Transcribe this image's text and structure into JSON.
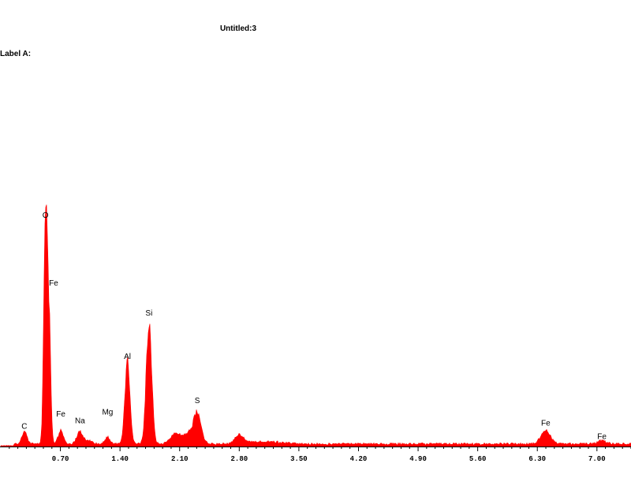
{
  "header": {
    "title": "Untitled:3",
    "label": "Label A:"
  },
  "chart_data": {
    "type": "area",
    "xlim": [
      0.0,
      7.4
    ],
    "ylim": [
      0,
      100
    ],
    "grid": false,
    "color": "#ff0000",
    "x_ticks": [
      "0.70",
      "1.40",
      "2.10",
      "2.80",
      "3.50",
      "4.20",
      "4.90",
      "5.60",
      "6.30",
      "7.00"
    ],
    "x_tick_values": [
      0.7,
      1.4,
      2.1,
      2.8,
      3.5,
      4.2,
      4.9,
      5.6,
      6.3,
      7.0
    ],
    "baseline": 1.2,
    "peaks": [
      {
        "center": 0.277,
        "height": 5.5,
        "width": 0.03
      },
      {
        "center": 0.525,
        "height": 100,
        "width": 0.02
      },
      {
        "center": 0.565,
        "height": 55,
        "width": 0.02
      },
      {
        "center": 0.705,
        "height": 6.0,
        "width": 0.03
      },
      {
        "center": 0.93,
        "height": 5.5,
        "width": 0.035
      },
      {
        "center": 1.04,
        "height": 1.5,
        "width": 0.04
      },
      {
        "center": 1.254,
        "height": 3.0,
        "width": 0.03
      },
      {
        "center": 1.487,
        "height": 36,
        "width": 0.03
      },
      {
        "center": 1.74,
        "height": 55,
        "width": 0.032
      },
      {
        "center": 2.06,
        "height": 5.0,
        "width": 0.06
      },
      {
        "center": 2.2,
        "height": 4.0,
        "width": 0.05
      },
      {
        "center": 2.307,
        "height": 14,
        "width": 0.045
      },
      {
        "center": 2.8,
        "height": 4.0,
        "width": 0.05
      },
      {
        "center": 3.1,
        "height": 1.0,
        "width": 0.2
      },
      {
        "center": 6.398,
        "height": 6.0,
        "width": 0.055
      },
      {
        "center": 7.058,
        "height": 1.5,
        "width": 0.05
      }
    ],
    "annotations": [
      {
        "label": "C",
        "x": 0.277,
        "y": 6.5
      },
      {
        "label": "O",
        "x": 0.525,
        "y": 101.5
      },
      {
        "label": "Fe",
        "x": 0.62,
        "y": 71
      },
      {
        "label": "Fe",
        "x": 0.705,
        "y": 12
      },
      {
        "label": "Na",
        "x": 0.93,
        "y": 9
      },
      {
        "label": "Mg",
        "x": 1.254,
        "y": 13
      },
      {
        "label": "Al",
        "x": 1.487,
        "y": 38
      },
      {
        "label": "Si",
        "x": 1.74,
        "y": 57.5
      },
      {
        "label": "S",
        "x": 2.307,
        "y": 18
      },
      {
        "label": "Fe",
        "x": 6.398,
        "y": 8
      },
      {
        "label": "Fe",
        "x": 7.058,
        "y": 2
      }
    ]
  }
}
